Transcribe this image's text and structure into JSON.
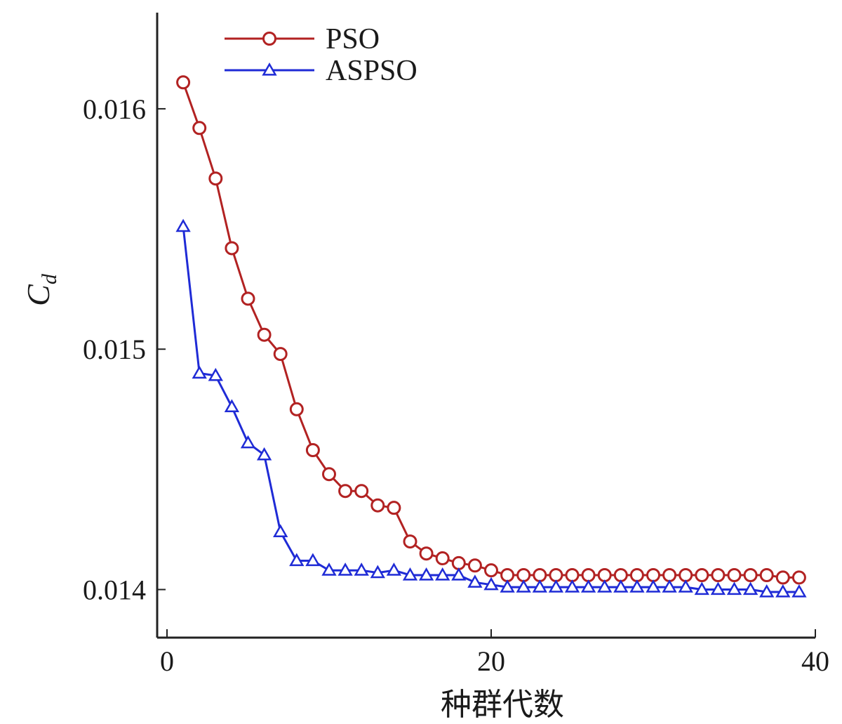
{
  "chart_data": {
    "type": "line",
    "xlabel": "种群代数",
    "ylabel": "C",
    "ylabel_subscript": "d",
    "xlim": [
      0,
      40
    ],
    "ylim": [
      0.0138,
      0.0164
    ],
    "xticks": [
      "0",
      "20",
      "40"
    ],
    "yticks": [
      "0.014",
      "0.015",
      "0.016"
    ],
    "grid": false,
    "legend": "top-left",
    "x": [
      1,
      2,
      3,
      4,
      5,
      6,
      7,
      8,
      9,
      10,
      11,
      12,
      13,
      14,
      15,
      16,
      17,
      18,
      19,
      20,
      21,
      22,
      23,
      24,
      25,
      26,
      27,
      28,
      29,
      30,
      31,
      32,
      33,
      34,
      35,
      36,
      37,
      38,
      39
    ],
    "series": [
      {
        "name": "PSO",
        "color": "#b22222",
        "marker": "circle",
        "values": [
          0.01611,
          0.01592,
          0.01571,
          0.01542,
          0.01521,
          0.01506,
          0.01498,
          0.01475,
          0.01458,
          0.01448,
          0.01441,
          0.01441,
          0.01435,
          0.01434,
          0.0142,
          0.01415,
          0.01413,
          0.01411,
          0.0141,
          0.01408,
          0.01406,
          0.01406,
          0.01406,
          0.01406,
          0.01406,
          0.01406,
          0.01406,
          0.01406,
          0.01406,
          0.01406,
          0.01406,
          0.01406,
          0.01406,
          0.01406,
          0.01406,
          0.01406,
          0.01406,
          0.01405,
          0.01405
        ]
      },
      {
        "name": "ASPSO",
        "color": "#1f2bd6",
        "marker": "triangle",
        "values": [
          0.01551,
          0.0149,
          0.01489,
          0.01476,
          0.01461,
          0.01456,
          0.01424,
          0.01412,
          0.01412,
          0.01408,
          0.01408,
          0.01408,
          0.01407,
          0.01408,
          0.01406,
          0.01406,
          0.01406,
          0.01406,
          0.01403,
          0.01402,
          0.01401,
          0.01401,
          0.01401,
          0.01401,
          0.01401,
          0.01401,
          0.01401,
          0.01401,
          0.01401,
          0.01401,
          0.01401,
          0.01401,
          0.014,
          0.014,
          0.014,
          0.014,
          0.01399,
          0.01399,
          0.01399
        ]
      }
    ]
  }
}
